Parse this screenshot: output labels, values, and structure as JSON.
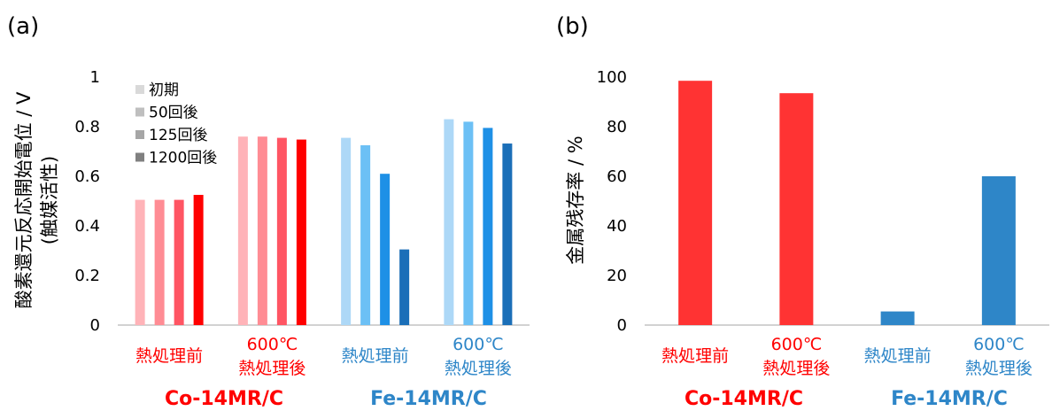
{
  "colors": {
    "co_before": "#FFB3B8",
    "co_50": "#FF8C94",
    "co_125": "#FF5563",
    "co_1200": "#FF0000",
    "fe_before": "#ADD8F7",
    "fe_50": "#6CC0F5",
    "fe_125": "#1E90E6",
    "fe_1200": "#1B6FB8",
    "co_group": "#FF3333",
    "fe_group": "#2E86C8",
    "legend_1": "#D9D9D9",
    "legend_2": "#BFBFBF",
    "legend_3": "#A6A6A6",
    "legend_4": "#808080",
    "red_text": "#FF0000",
    "blue_text": "#2E86C8"
  },
  "chart_data": [
    {
      "type": "bar",
      "panel_label": "(a)",
      "ylabel_line1": "酸素還元反応開始電位 / V",
      "ylabel_line2": "(触媒活性)",
      "ylim": [
        0,
        1
      ],
      "yticks": [
        "0",
        "0.2",
        "0.4",
        "0.6",
        "0.8",
        "1"
      ],
      "legend": [
        "初期",
        "50回後",
        "125回後",
        "1200回後"
      ],
      "categories": [
        {
          "line1": "熱処理前",
          "line2": ""
        },
        {
          "line1": "600℃",
          "line2": "熱処理後"
        },
        {
          "line1": "熱処理前",
          "line2": ""
        },
        {
          "line1": "600℃",
          "line2": "熱処理後"
        }
      ],
      "groups": [
        "Co-14MR/C",
        "Fe-14MR/C"
      ],
      "series": [
        {
          "name": "初期",
          "values": [
            0.505,
            0.76,
            0.755,
            0.83
          ]
        },
        {
          "name": "50回後",
          "values": [
            0.505,
            0.76,
            0.725,
            0.82
          ]
        },
        {
          "name": "125回後",
          "values": [
            0.505,
            0.755,
            0.61,
            0.795
          ]
        },
        {
          "name": "1200回後",
          "values": [
            0.525,
            0.748,
            0.305,
            0.732
          ]
        }
      ]
    },
    {
      "type": "bar",
      "panel_label": "(b)",
      "ylabel": "金属残存率 / %",
      "ylim": [
        0,
        100
      ],
      "yticks": [
        "0",
        "20",
        "40",
        "60",
        "80",
        "100"
      ],
      "categories": [
        {
          "line1": "熱処理前",
          "line2": ""
        },
        {
          "line1": "600℃",
          "line2": "熱処理後"
        },
        {
          "line1": "熱処理前",
          "line2": ""
        },
        {
          "line1": "600℃",
          "line2": "熱処理後"
        }
      ],
      "groups": [
        "Co-14MR/C",
        "Fe-14MR/C"
      ],
      "values": [
        98.5,
        93.5,
        5.5,
        60
      ]
    }
  ]
}
